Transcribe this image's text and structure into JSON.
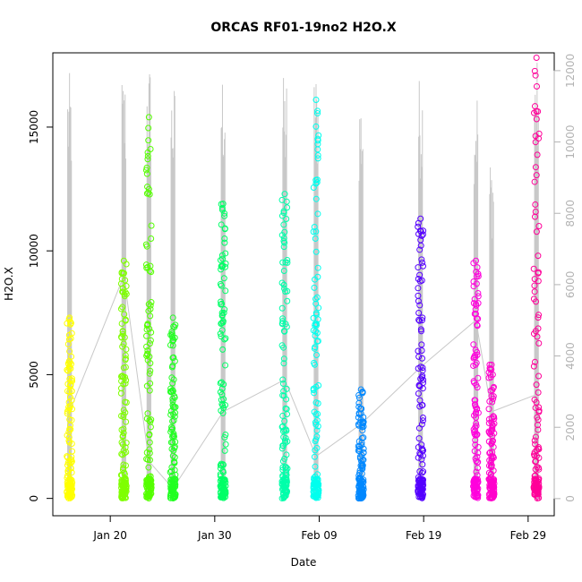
{
  "chart_data": {
    "type": "scatter",
    "title": "ORCAS RF01-19no2 H2O.X",
    "xlabel": "Date",
    "ylabel": "H2O.X",
    "x_tick_labels": [
      "Jan 20",
      "Jan 30",
      "Feb 09",
      "Feb 19",
      "Feb 29"
    ],
    "x_tick_days": [
      20,
      30,
      40,
      50,
      60
    ],
    "xlim_days": [
      14.5,
      62.5
    ],
    "ylim": [
      -700,
      18000
    ],
    "y_ticks": [
      0,
      5000,
      10000,
      15000
    ],
    "y2_ticks": [
      0,
      2000,
      4000,
      6000,
      8000,
      10000,
      12000
    ],
    "y2lim": [
      -480,
      12500
    ],
    "grid": false,
    "series_color_note": "each flight colored by a rainbow palette",
    "background_trace_color": "#c8c8c8",
    "flights": [
      {
        "day": 16.1,
        "color": "#ffff00",
        "y_max": 7300,
        "trace_max": 17200,
        "trace_mid": 3500
      },
      {
        "day": 21.3,
        "color": "#7fff00",
        "y_max": 9600,
        "trace_max": 17200,
        "trace_mid": 9000
      },
      {
        "day": 23.7,
        "color": "#55ff00",
        "y_max": 15400,
        "trace_max": 17700,
        "trace_mid": 1500
      },
      {
        "day": 26.0,
        "color": "#22ff22",
        "y_max": 7300,
        "trace_max": 16800,
        "trace_mid": 400
      },
      {
        "day": 30.8,
        "color": "#00ff66",
        "y_max": 11900,
        "trace_max": 17500,
        "trace_mid": 3500
      },
      {
        "day": 36.7,
        "color": "#00ffaa",
        "y_max": 12300,
        "trace_max": 17100,
        "trace_mid": 4800
      },
      {
        "day": 39.7,
        "color": "#00ffee",
        "y_max": 16100,
        "trace_max": 17400,
        "trace_mid": 1700
      },
      {
        "day": 44.0,
        "color": "#0088ff",
        "y_max": 4400,
        "trace_max": 16600,
        "trace_mid": 3000
      },
      {
        "day": 49.7,
        "color": "#5500ff",
        "y_max": 11300,
        "trace_max": 17100,
        "trace_mid": 5300
      },
      {
        "day": 55.0,
        "color": "#ff00dd",
        "y_max": 9600,
        "trace_max": 16900,
        "trace_mid": 7200
      },
      {
        "day": 56.5,
        "color": "#ff00cc",
        "y_max": 5400,
        "trace_max": 13900,
        "trace_mid": 3500
      },
      {
        "day": 60.8,
        "color": "#ff0099",
        "y_max": 17800,
        "trace_max": 17800,
        "trace_mid": 4200
      }
    ]
  }
}
